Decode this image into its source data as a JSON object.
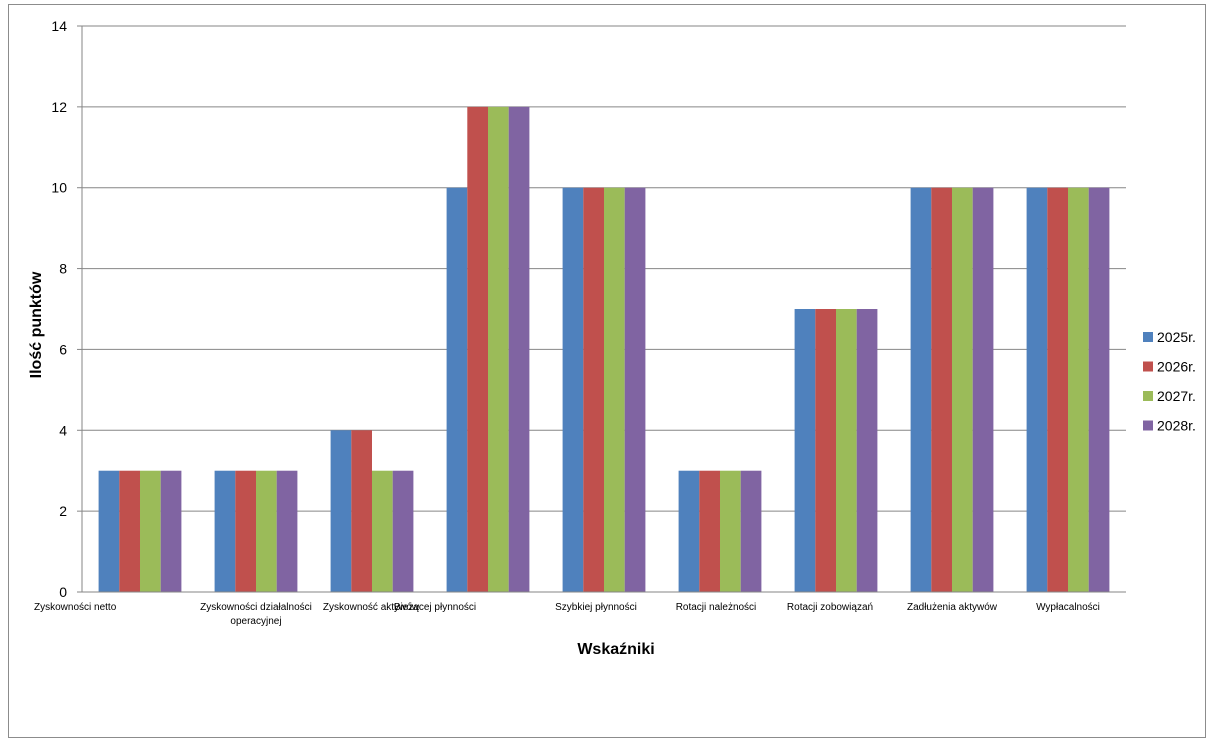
{
  "chart_data": {
    "type": "bar",
    "title": "",
    "xlabel": "Wskaźniki",
    "ylabel": "Ilość punktów",
    "ylim": [
      0,
      14
    ],
    "yticks": [
      0,
      2,
      4,
      6,
      8,
      10,
      12,
      14
    ],
    "grid": true,
    "legend_position": "right",
    "categories": [
      [
        "Zyskowności  netto"
      ],
      [
        "Zyskowności działalności",
        "operacyjnej"
      ],
      [
        "Zyskowność aktywów"
      ],
      [
        "Bieżącej płynności"
      ],
      [
        "Szybkiej płynności"
      ],
      [
        "Rotacji należności"
      ],
      [
        "Rotacji zobowiązań"
      ],
      [
        "Zadłużenia aktywów"
      ],
      [
        "Wypłacalności"
      ]
    ],
    "series": [
      {
        "name": "2025r.",
        "color": "#4F81BD",
        "values": [
          3,
          3,
          4,
          10,
          10,
          3,
          7,
          10,
          10
        ]
      },
      {
        "name": "2026r.",
        "color": "#C0504D",
        "values": [
          3,
          3,
          4,
          12,
          10,
          3,
          7,
          10,
          10
        ]
      },
      {
        "name": "2027r.",
        "color": "#9BBB59",
        "values": [
          3,
          3,
          3,
          12,
          10,
          3,
          7,
          10,
          10
        ]
      },
      {
        "name": "2028r.",
        "color": "#8064A2",
        "values": [
          3,
          3,
          3,
          12,
          10,
          3,
          7,
          10,
          10
        ]
      }
    ]
  }
}
